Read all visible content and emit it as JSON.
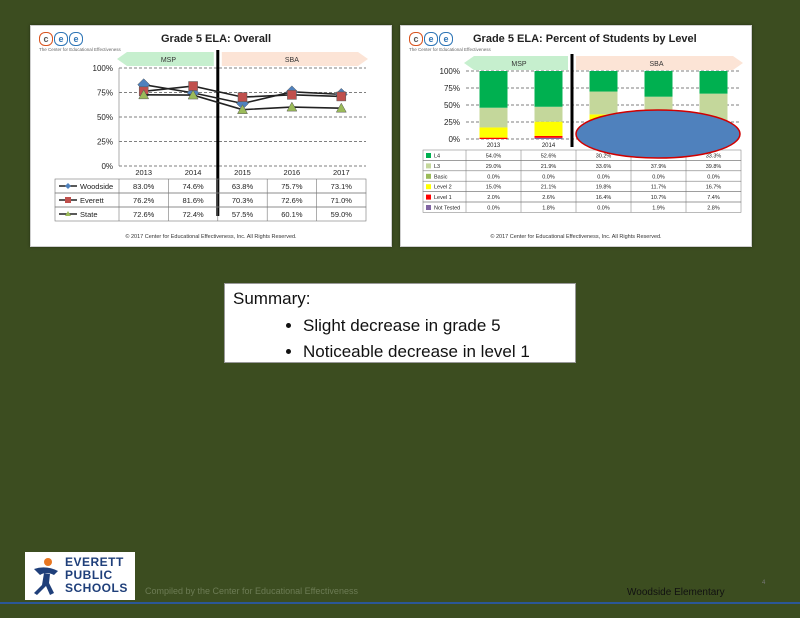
{
  "left_panel": {
    "logo_letters": [
      "c",
      "e",
      "e"
    ],
    "logo_subtitle": "The Center for Educational Effectiveness",
    "copyright": "© 2017 Center for Educational Effectiveness, Inc. All Rights Reserved."
  },
  "right_panel": {
    "logo_letters": [
      "c",
      "e",
      "e"
    ],
    "logo_subtitle": "The Center for Educational Effectiveness",
    "copyright": "© 2017 Center for Educational Effectiveness, Inc. All Rights Reserved."
  },
  "chart_data": [
    {
      "type": "line",
      "title": "Grade 5 ELA: Overall",
      "x": [
        "2013",
        "2014",
        "2015",
        "2016",
        "2017"
      ],
      "ylim": [
        0,
        100
      ],
      "yticks": [
        "0%",
        "25%",
        "50%",
        "75%",
        "100%"
      ],
      "bands": [
        {
          "label": "MSP",
          "color": "#c6efce"
        },
        {
          "label": "SBA",
          "color": "#fce4d6"
        }
      ],
      "series": [
        {
          "name": "Woodside",
          "color": "#4f81bd",
          "marker": "diamond",
          "values": [
            83.0,
            74.6,
            63.8,
            75.7,
            73.1
          ],
          "labels": [
            "83.0%",
            "74.6%",
            "63.8%",
            "75.7%",
            "73.1%"
          ]
        },
        {
          "name": "Everett",
          "color": "#c0504d",
          "marker": "square",
          "values": [
            76.2,
            81.6,
            70.3,
            72.6,
            71.0
          ],
          "labels": [
            "76.2%",
            "81.6%",
            "70.3%",
            "72.6%",
            "71.0%"
          ]
        },
        {
          "name": "State",
          "color": "#9bbb59",
          "marker": "triangle",
          "values": [
            72.6,
            72.4,
            57.5,
            60.1,
            59.0
          ],
          "labels": [
            "72.6%",
            "72.4%",
            "57.5%",
            "60.1%",
            "59.0%"
          ]
        }
      ]
    },
    {
      "type": "bar",
      "stacked": true,
      "title": "Grade 5 ELA: Percent of Students by Level",
      "categories": [
        "2013",
        "2014",
        "",
        "",
        ""
      ],
      "ylim": [
        0,
        100
      ],
      "yticks": [
        "0%",
        "25%",
        "50%",
        "75%",
        "100%"
      ],
      "bands": [
        {
          "label": "MSP",
          "color": "#c6efce"
        },
        {
          "label": "SBA",
          "color": "#fce4d6"
        }
      ],
      "series": [
        {
          "name": "Not Tested",
          "color": "#8064a2",
          "values": [
            0.0,
            1.8,
            0.0,
            1.9,
            2.8
          ],
          "labels": [
            "0.0%",
            "1.8%",
            "0.0%",
            "1.9%",
            "2.8%"
          ]
        },
        {
          "name": "Level 1",
          "color": "#ff0000",
          "values": [
            2.0,
            2.6,
            16.4,
            10.7,
            7.4
          ],
          "labels": [
            "2.0%",
            "2.6%",
            "16.4%",
            "10.7%",
            "7.4%"
          ]
        },
        {
          "name": "Level 2",
          "color": "#ffff00",
          "values": [
            15.0,
            21.1,
            19.8,
            11.7,
            16.7
          ],
          "labels": [
            "15.0%",
            "21.1%",
            "19.8%",
            "11.7%",
            "16.7%"
          ]
        },
        {
          "name": "Basic",
          "color": "#9bbb59",
          "values": [
            0.0,
            0.0,
            0.0,
            0.0,
            0.0
          ],
          "labels": [
            "0.0%",
            "0.0%",
            "0.0%",
            "0.0%",
            "0.0%"
          ]
        },
        {
          "name": "L3",
          "color": "#c4d79b",
          "values": [
            29.0,
            21.9,
            33.6,
            37.9,
            39.8
          ],
          "labels": [
            "29.0%",
            "21.9%",
            "33.6%",
            "37.9%",
            "39.8%"
          ]
        },
        {
          "name": "L4",
          "color": "#00b050",
          "values": [
            54.0,
            52.6,
            30.2,
            37.9,
            33.3
          ],
          "labels": [
            "54.0%",
            "52.6%",
            "30.2%",
            "37.9%",
            "33.3%"
          ]
        }
      ],
      "table_order": [
        "L4",
        "L3",
        "Basic",
        "Level 2",
        "Level 1",
        "Not Tested"
      ],
      "table_labels": {
        "L4": "L4",
        "L3": "L3",
        "Basic": "Basic",
        "Level 2": "Level 2",
        "Level 1": "Level 1",
        "Not Tested": "Not Tested"
      },
      "overlay": {
        "shape": "ellipse",
        "color": "#4f81bd",
        "border": "#d00000"
      }
    }
  ],
  "summary": {
    "title": "Summary:",
    "items": [
      "Slight decrease in grade 5",
      "Noticeable decrease in level 1"
    ]
  },
  "footer": {
    "logo_lines": [
      "EVERETT",
      "PUBLIC",
      "SCHOOLS"
    ],
    "compiled_by": "Compiled by the Center for Educational Effectiveness",
    "school_name": "Woodside Elementary",
    "page_number": "4"
  }
}
